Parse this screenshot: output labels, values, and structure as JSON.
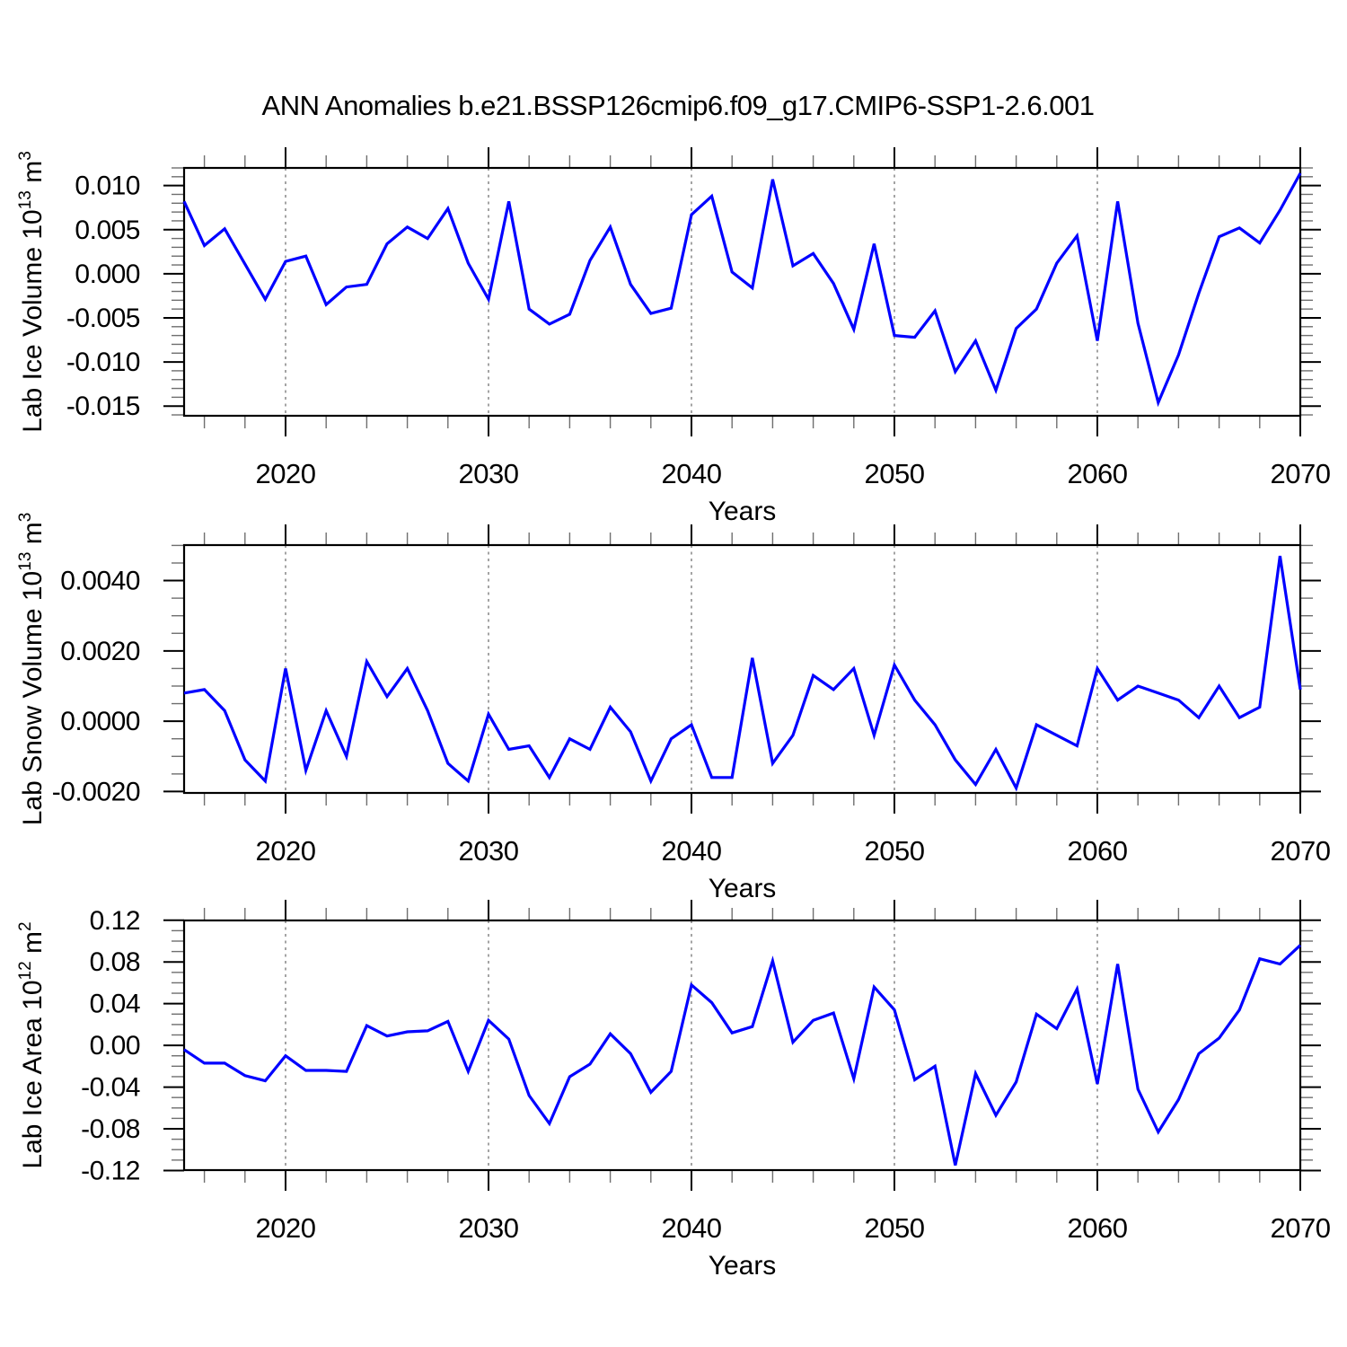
{
  "title": "ANN Anomalies b.e21.BSSP126cmip6.f09_g17.CMIP6-SSP1-2.6.001",
  "background_color": "#ffffff",
  "line_color": "#0000ff",
  "frame_color": "#000000",
  "grid_color": "#7d7d7d",
  "minor_tick_color": "#6f6f6f",
  "x_axis": {
    "label": "Years",
    "range": [
      2015,
      2070
    ],
    "major_ticks": [
      2020,
      2030,
      2040,
      2050,
      2060,
      2070
    ],
    "major_tick_labels": [
      "2020",
      "2030",
      "2040",
      "2050",
      "2060",
      "2070"
    ],
    "minor_tick_step": 2,
    "grid_years": [
      2020,
      2030,
      2040,
      2050,
      2060
    ]
  },
  "chart_data": [
    {
      "type": "line",
      "name": "lab-ice-volume",
      "title": "",
      "xlabel": "Years",
      "ylabel": "Lab Ice Volume 10^13 m^3",
      "ylabel_parts": [
        {
          "text": "Lab Ice Volume 10",
          "sup": false
        },
        {
          "text": "13",
          "sup": true
        },
        {
          "text": " m",
          "sup": false
        },
        {
          "text": "3",
          "sup": true
        }
      ],
      "grid": "vertical-dashed",
      "legend": "none",
      "ylim": [
        -0.0161,
        0.012
      ],
      "y_major_ticks": [
        0.01,
        0.005,
        0.0,
        -0.005,
        -0.01,
        -0.015
      ],
      "y_major_labels": [
        "0.010",
        "0.005",
        "0.000",
        "-0.005",
        "-0.010",
        "-0.015"
      ],
      "y_minor_step": 0.001,
      "x_start": 2015,
      "x_step": 1,
      "values": [
        0.0082,
        0.0032,
        0.0051,
        0.0011,
        -0.0029,
        0.0014,
        0.002,
        -0.0035,
        -0.0015,
        -0.0012,
        0.0034,
        0.0053,
        0.004,
        0.0074,
        0.0012,
        -0.0029,
        0.0082,
        -0.004,
        -0.0057,
        -0.0046,
        0.0015,
        0.0053,
        -0.0012,
        -0.0045,
        -0.0039,
        0.0067,
        0.0088,
        0.0002,
        -0.0016,
        0.0107,
        0.0009,
        0.0023,
        -0.0011,
        -0.0063,
        0.0034,
        -0.007,
        -0.0072,
        -0.0042,
        -0.0111,
        -0.0076,
        -0.0132,
        -0.0062,
        -0.004,
        0.0012,
        0.0043,
        -0.0076,
        0.0082,
        -0.0056,
        -0.0146,
        -0.0092,
        -0.0022,
        0.0042,
        0.0052,
        0.0035,
        0.0072,
        0.0114
      ]
    },
    {
      "type": "line",
      "name": "lab-snow-volume",
      "title": "",
      "xlabel": "Years",
      "ylabel": "Lab Snow Volume 10^13 m^3",
      "ylabel_parts": [
        {
          "text": "Lab Snow Volume 10",
          "sup": false
        },
        {
          "text": "13",
          "sup": true
        },
        {
          "text": " m",
          "sup": false
        },
        {
          "text": "3",
          "sup": true
        }
      ],
      "grid": "vertical-dashed",
      "legend": "none",
      "ylim": [
        -0.00204,
        0.00501
      ],
      "y_major_ticks": [
        0.004,
        0.002,
        0.0,
        -0.002
      ],
      "y_major_labels": [
        "0.0040",
        "0.0020",
        "0.0000",
        "-0.0020"
      ],
      "y_minor_step": 0.0005,
      "x_start": 2015,
      "x_step": 1,
      "values": [
        0.0008,
        0.0009,
        0.0003,
        -0.0011,
        -0.0017,
        0.0015,
        -0.0014,
        0.0003,
        -0.001,
        0.0017,
        0.0007,
        0.0015,
        0.0003,
        -0.0012,
        -0.0017,
        0.0002,
        -0.0008,
        -0.0007,
        -0.0016,
        -0.0005,
        -0.0008,
        0.0004,
        -0.0003,
        -0.0017,
        -0.0005,
        -0.0001,
        -0.0016,
        -0.0016,
        0.0018,
        -0.0012,
        -0.0004,
        0.0013,
        0.0009,
        0.0015,
        -0.0004,
        0.0016,
        0.0006,
        -0.0001,
        -0.0011,
        -0.0018,
        -0.0008,
        -0.0019,
        -0.0001,
        -0.0004,
        -0.0007,
        0.0015,
        0.0006,
        0.001,
        0.0008,
        0.0006,
        0.0001,
        0.001,
        0.0001,
        0.0004,
        0.0047,
        0.0009
      ]
    },
    {
      "type": "line",
      "name": "lab-ice-area",
      "title": "",
      "xlabel": "Years",
      "ylabel": "Lab Ice Area 10^12 m^2",
      "ylabel_parts": [
        {
          "text": "Lab Ice Area 10",
          "sup": false
        },
        {
          "text": "12",
          "sup": true
        },
        {
          "text": " m",
          "sup": false
        },
        {
          "text": "2",
          "sup": true
        }
      ],
      "grid": "vertical-dashed",
      "legend": "none",
      "ylim": [
        -0.1196,
        0.1198
      ],
      "y_major_ticks": [
        0.12,
        0.08,
        0.04,
        0.0,
        -0.04,
        -0.08,
        -0.12
      ],
      "y_major_labels": [
        "0.12",
        "0.08",
        "0.04",
        "0.00",
        "-0.04",
        "-0.08",
        "-0.12"
      ],
      "y_minor_step": 0.01,
      "x_start": 2015,
      "x_step": 1,
      "values": [
        -0.004,
        -0.017,
        -0.017,
        -0.029,
        -0.034,
        -0.01,
        -0.024,
        -0.024,
        -0.025,
        0.019,
        0.009,
        0.013,
        0.014,
        0.023,
        -0.025,
        0.024,
        0.006,
        -0.048,
        -0.075,
        -0.03,
        -0.018,
        0.011,
        -0.008,
        -0.045,
        -0.025,
        0.058,
        0.041,
        0.012,
        0.018,
        0.081,
        0.003,
        0.024,
        0.031,
        -0.032,
        0.056,
        0.034,
        -0.033,
        -0.02,
        -0.115,
        -0.027,
        -0.067,
        -0.035,
        0.03,
        0.016,
        0.054,
        -0.037,
        0.078,
        -0.042,
        -0.083,
        -0.052,
        -0.008,
        0.007,
        0.034,
        0.083,
        0.078,
        0.096
      ]
    }
  ]
}
